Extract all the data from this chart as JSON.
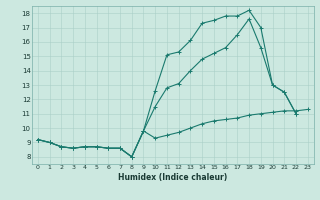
{
  "xlabel": "Humidex (Indice chaleur)",
  "xlim": [
    -0.5,
    23.5
  ],
  "ylim": [
    7.5,
    18.5
  ],
  "xticks": [
    0,
    1,
    2,
    3,
    4,
    5,
    6,
    7,
    8,
    9,
    10,
    11,
    12,
    13,
    14,
    15,
    16,
    17,
    18,
    19,
    20,
    21,
    22,
    23
  ],
  "yticks": [
    8,
    9,
    10,
    11,
    12,
    13,
    14,
    15,
    16,
    17,
    18
  ],
  "line_color": "#1a7a6e",
  "bg_color": "#cce8e0",
  "grid_color": "#aacfc8",
  "line1_x": [
    0,
    1,
    2,
    3,
    4,
    5,
    6,
    7,
    8,
    9,
    10,
    11,
    12,
    13,
    14,
    15,
    16,
    17,
    18,
    19,
    20,
    21,
    22,
    23
  ],
  "line1_y": [
    9.2,
    9.0,
    8.7,
    8.6,
    8.7,
    8.7,
    8.6,
    8.6,
    8.0,
    9.8,
    9.3,
    9.5,
    9.7,
    10.0,
    10.3,
    10.5,
    10.6,
    10.7,
    10.9,
    11.0,
    11.1,
    11.2,
    11.2,
    11.3
  ],
  "line2_x": [
    0,
    1,
    2,
    3,
    4,
    5,
    6,
    7,
    8,
    9,
    10,
    11,
    12,
    13,
    14,
    15,
    16,
    17,
    18,
    19,
    20,
    21,
    22,
    23
  ],
  "line2_y": [
    9.2,
    9.0,
    8.7,
    8.6,
    8.7,
    8.7,
    8.6,
    8.6,
    8.0,
    9.8,
    12.6,
    15.1,
    15.3,
    16.1,
    17.3,
    17.5,
    17.8,
    17.8,
    18.2,
    17.0,
    13.0,
    12.5,
    11.0,
    null
  ],
  "line3_x": [
    0,
    1,
    2,
    3,
    4,
    5,
    6,
    7,
    8,
    9,
    10,
    11,
    12,
    13,
    14,
    15,
    16,
    17,
    18,
    19,
    20,
    21,
    22,
    23
  ],
  "line3_y": [
    9.2,
    9.0,
    8.7,
    8.6,
    8.7,
    8.7,
    8.6,
    8.6,
    8.0,
    9.8,
    11.5,
    12.8,
    13.1,
    14.0,
    14.8,
    15.2,
    15.6,
    16.5,
    17.6,
    15.6,
    13.0,
    12.5,
    11.0,
    null
  ]
}
